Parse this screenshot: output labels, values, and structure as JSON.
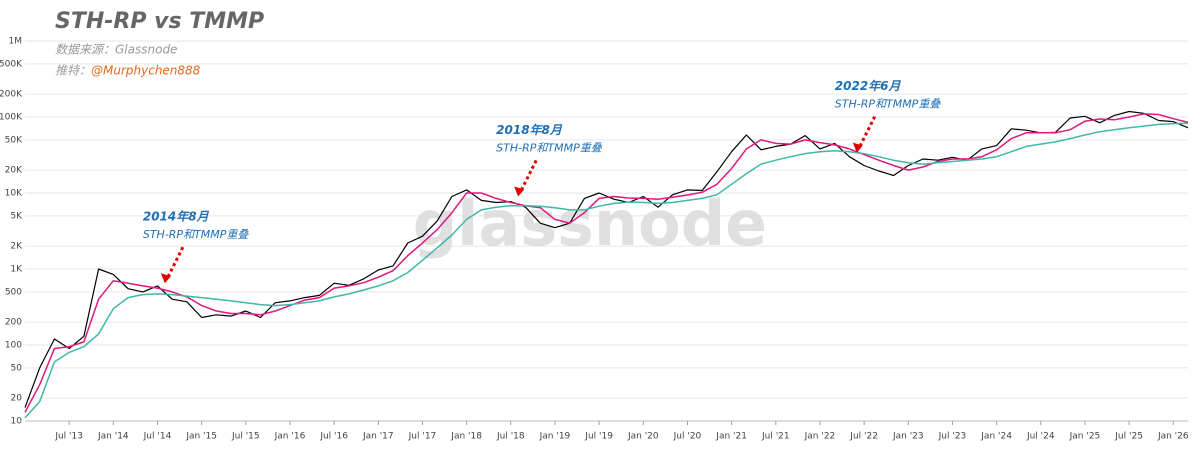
{
  "chart_data": {
    "type": "line",
    "title": "STH-RP vs TMMP",
    "source": "数据来源：Glassnode",
    "twitter_label": "推特：",
    "twitter_handle": "@Murphychen888",
    "watermark": "glassnode",
    "log_scale": true,
    "grid": true,
    "xlim": [
      "2013-01",
      "2026-03"
    ],
    "ylim": [
      10,
      1000000
    ],
    "yticks": [
      10,
      20,
      50,
      100,
      200,
      500,
      {
        "value": 1000,
        "label": "1K"
      },
      {
        "value": 2000,
        "label": "2K"
      },
      {
        "value": 5000,
        "label": "5K"
      },
      {
        "value": 10000,
        "label": "10K"
      },
      {
        "value": 20000,
        "label": "20K"
      },
      {
        "value": 50000,
        "label": "50K"
      },
      {
        "value": 100000,
        "label": "100K"
      },
      {
        "value": 200000,
        "label": "200K"
      },
      {
        "value": 500000,
        "label": "500K"
      },
      {
        "value": 1000000,
        "label": "1M"
      }
    ],
    "xticks": [
      {
        "value": "2013-07",
        "label": "Jul '13"
      },
      {
        "value": "2014-01",
        "label": "Jan '14"
      },
      {
        "value": "2014-07",
        "label": "Jul '14"
      },
      {
        "value": "2015-01",
        "label": "Jan '15"
      },
      {
        "value": "2015-07",
        "label": "Jul '15"
      },
      {
        "value": "2016-01",
        "label": "Jan '16"
      },
      {
        "value": "2016-07",
        "label": "Jul '16"
      },
      {
        "value": "2017-01",
        "label": "Jan '17"
      },
      {
        "value": "2017-07",
        "label": "Jul '17"
      },
      {
        "value": "2018-01",
        "label": "Jan '18"
      },
      {
        "value": "2018-07",
        "label": "Jul '18"
      },
      {
        "value": "2019-01",
        "label": "Jan '19"
      },
      {
        "value": "2019-07",
        "label": "Jul '19"
      },
      {
        "value": "2020-01",
        "label": "Jan '20"
      },
      {
        "value": "2020-07",
        "label": "Jul '20"
      },
      {
        "value": "2021-01",
        "label": "Jan '21"
      },
      {
        "value": "2021-07",
        "label": "Jul '21"
      },
      {
        "value": "2022-01",
        "label": "Jan '22"
      },
      {
        "value": "2022-07",
        "label": "Jul '22"
      },
      {
        "value": "2023-01",
        "label": "Jan '23"
      },
      {
        "value": "2023-07",
        "label": "Jul '23"
      },
      {
        "value": "2024-01",
        "label": "Jan '24"
      },
      {
        "value": "2024-07",
        "label": "Jul '24"
      },
      {
        "value": "2025-01",
        "label": "Jan '25"
      },
      {
        "value": "2025-07",
        "label": "Jul '25"
      },
      {
        "value": "2026-01",
        "label": "Jan '26"
      }
    ],
    "x": [
      "2013-01",
      "2013-03",
      "2013-05",
      "2013-07",
      "2013-09",
      "2013-11",
      "2014-01",
      "2014-03",
      "2014-05",
      "2014-07",
      "2014-09",
      "2014-11",
      "2015-01",
      "2015-03",
      "2015-05",
      "2015-07",
      "2015-09",
      "2015-11",
      "2016-01",
      "2016-03",
      "2016-05",
      "2016-07",
      "2016-09",
      "2016-11",
      "2017-01",
      "2017-03",
      "2017-05",
      "2017-07",
      "2017-09",
      "2017-11",
      "2018-01",
      "2018-03",
      "2018-05",
      "2018-07",
      "2018-09",
      "2018-11",
      "2019-01",
      "2019-03",
      "2019-05",
      "2019-07",
      "2019-09",
      "2019-11",
      "2020-01",
      "2020-03",
      "2020-05",
      "2020-07",
      "2020-09",
      "2020-11",
      "2021-01",
      "2021-03",
      "2021-05",
      "2021-07",
      "2021-09",
      "2021-11",
      "2022-01",
      "2022-03",
      "2022-05",
      "2022-07",
      "2022-09",
      "2022-11",
      "2023-01",
      "2023-03",
      "2023-05",
      "2023-07",
      "2023-09",
      "2023-11",
      "2024-01",
      "2024-03",
      "2024-05",
      "2024-07",
      "2024-09",
      "2024-11",
      "2025-01",
      "2025-03",
      "2025-05",
      "2025-07",
      "2025-09",
      "2025-11",
      "2026-01",
      "2026-03"
    ],
    "series": [
      {
        "color": "#000000",
        "values": [
          15,
          50,
          120,
          90,
          130,
          1000,
          850,
          550,
          500,
          600,
          400,
          370,
          230,
          250,
          240,
          280,
          230,
          360,
          380,
          420,
          450,
          650,
          610,
          740,
          970,
          1100,
          2200,
          2700,
          4300,
          9000,
          11000,
          8000,
          7500,
          7700,
          6500,
          4000,
          3500,
          4000,
          8500,
          10000,
          8300,
          7500,
          9000,
          6500,
          9500,
          11000,
          10800,
          19000,
          35000,
          58000,
          37000,
          41000,
          44000,
          57000,
          38000,
          45000,
          30000,
          23000,
          19500,
          17000,
          23000,
          28000,
          27000,
          29500,
          27000,
          38000,
          42000,
          70000,
          67000,
          62000,
          63000,
          97000,
          102000,
          84000,
          105000,
          118000,
          112000,
          90000,
          87000,
          72000
        ]
      },
      {
        "color": "#e0197d",
        "values": [
          13,
          30,
          90,
          95,
          110,
          400,
          700,
          650,
          600,
          560,
          500,
          430,
          330,
          280,
          260,
          260,
          250,
          280,
          330,
          390,
          420,
          560,
          600,
          660,
          780,
          950,
          1500,
          2200,
          3300,
          5500,
          10000,
          10000,
          8500,
          7500,
          6800,
          6400,
          4500,
          4000,
          5500,
          8500,
          9000,
          8600,
          8500,
          8300,
          8800,
          9400,
          10200,
          13000,
          21000,
          38000,
          50000,
          45000,
          44000,
          50000,
          46000,
          43000,
          38000,
          32000,
          27000,
          23000,
          20000,
          22000,
          26000,
          28000,
          28000,
          30000,
          37000,
          52000,
          62000,
          62000,
          62000,
          68000,
          88000,
          94000,
          92000,
          100000,
          110000,
          108000,
          95000,
          85000
        ]
      },
      {
        "color": "#3fb8a8",
        "values": [
          11,
          18,
          60,
          80,
          95,
          140,
          300,
          420,
          460,
          470,
          460,
          440,
          420,
          400,
          380,
          360,
          340,
          330,
          340,
          360,
          380,
          430,
          470,
          530,
          600,
          700,
          900,
          1300,
          1900,
          2800,
          4500,
          6000,
          6500,
          6800,
          6800,
          6700,
          6400,
          6000,
          6000,
          6700,
          7300,
          7600,
          7500,
          7300,
          7500,
          8000,
          8500,
          9500,
          13000,
          18000,
          24000,
          27000,
          30000,
          33000,
          35000,
          36000,
          35000,
          33000,
          30000,
          27000,
          25000,
          24000,
          25000,
          26000,
          27000,
          28000,
          30000,
          35000,
          41000,
          44000,
          47000,
          52000,
          58000,
          64000,
          68000,
          72000,
          76000,
          80000,
          82000,
          83000
        ]
      }
    ],
    "annotations": [
      {
        "x": "2014-08",
        "y": 650,
        "title": "2014年8月",
        "text": "STH-RP和TMMP重叠"
      },
      {
        "x": "2018-08",
        "y": 9000,
        "title": "2018年8月",
        "text": "STH-RP和TMMP重叠"
      },
      {
        "x": "2022-06",
        "y": 34000,
        "title": "2022年6月",
        "text": "STH-RP和TMMP重叠"
      }
    ]
  }
}
